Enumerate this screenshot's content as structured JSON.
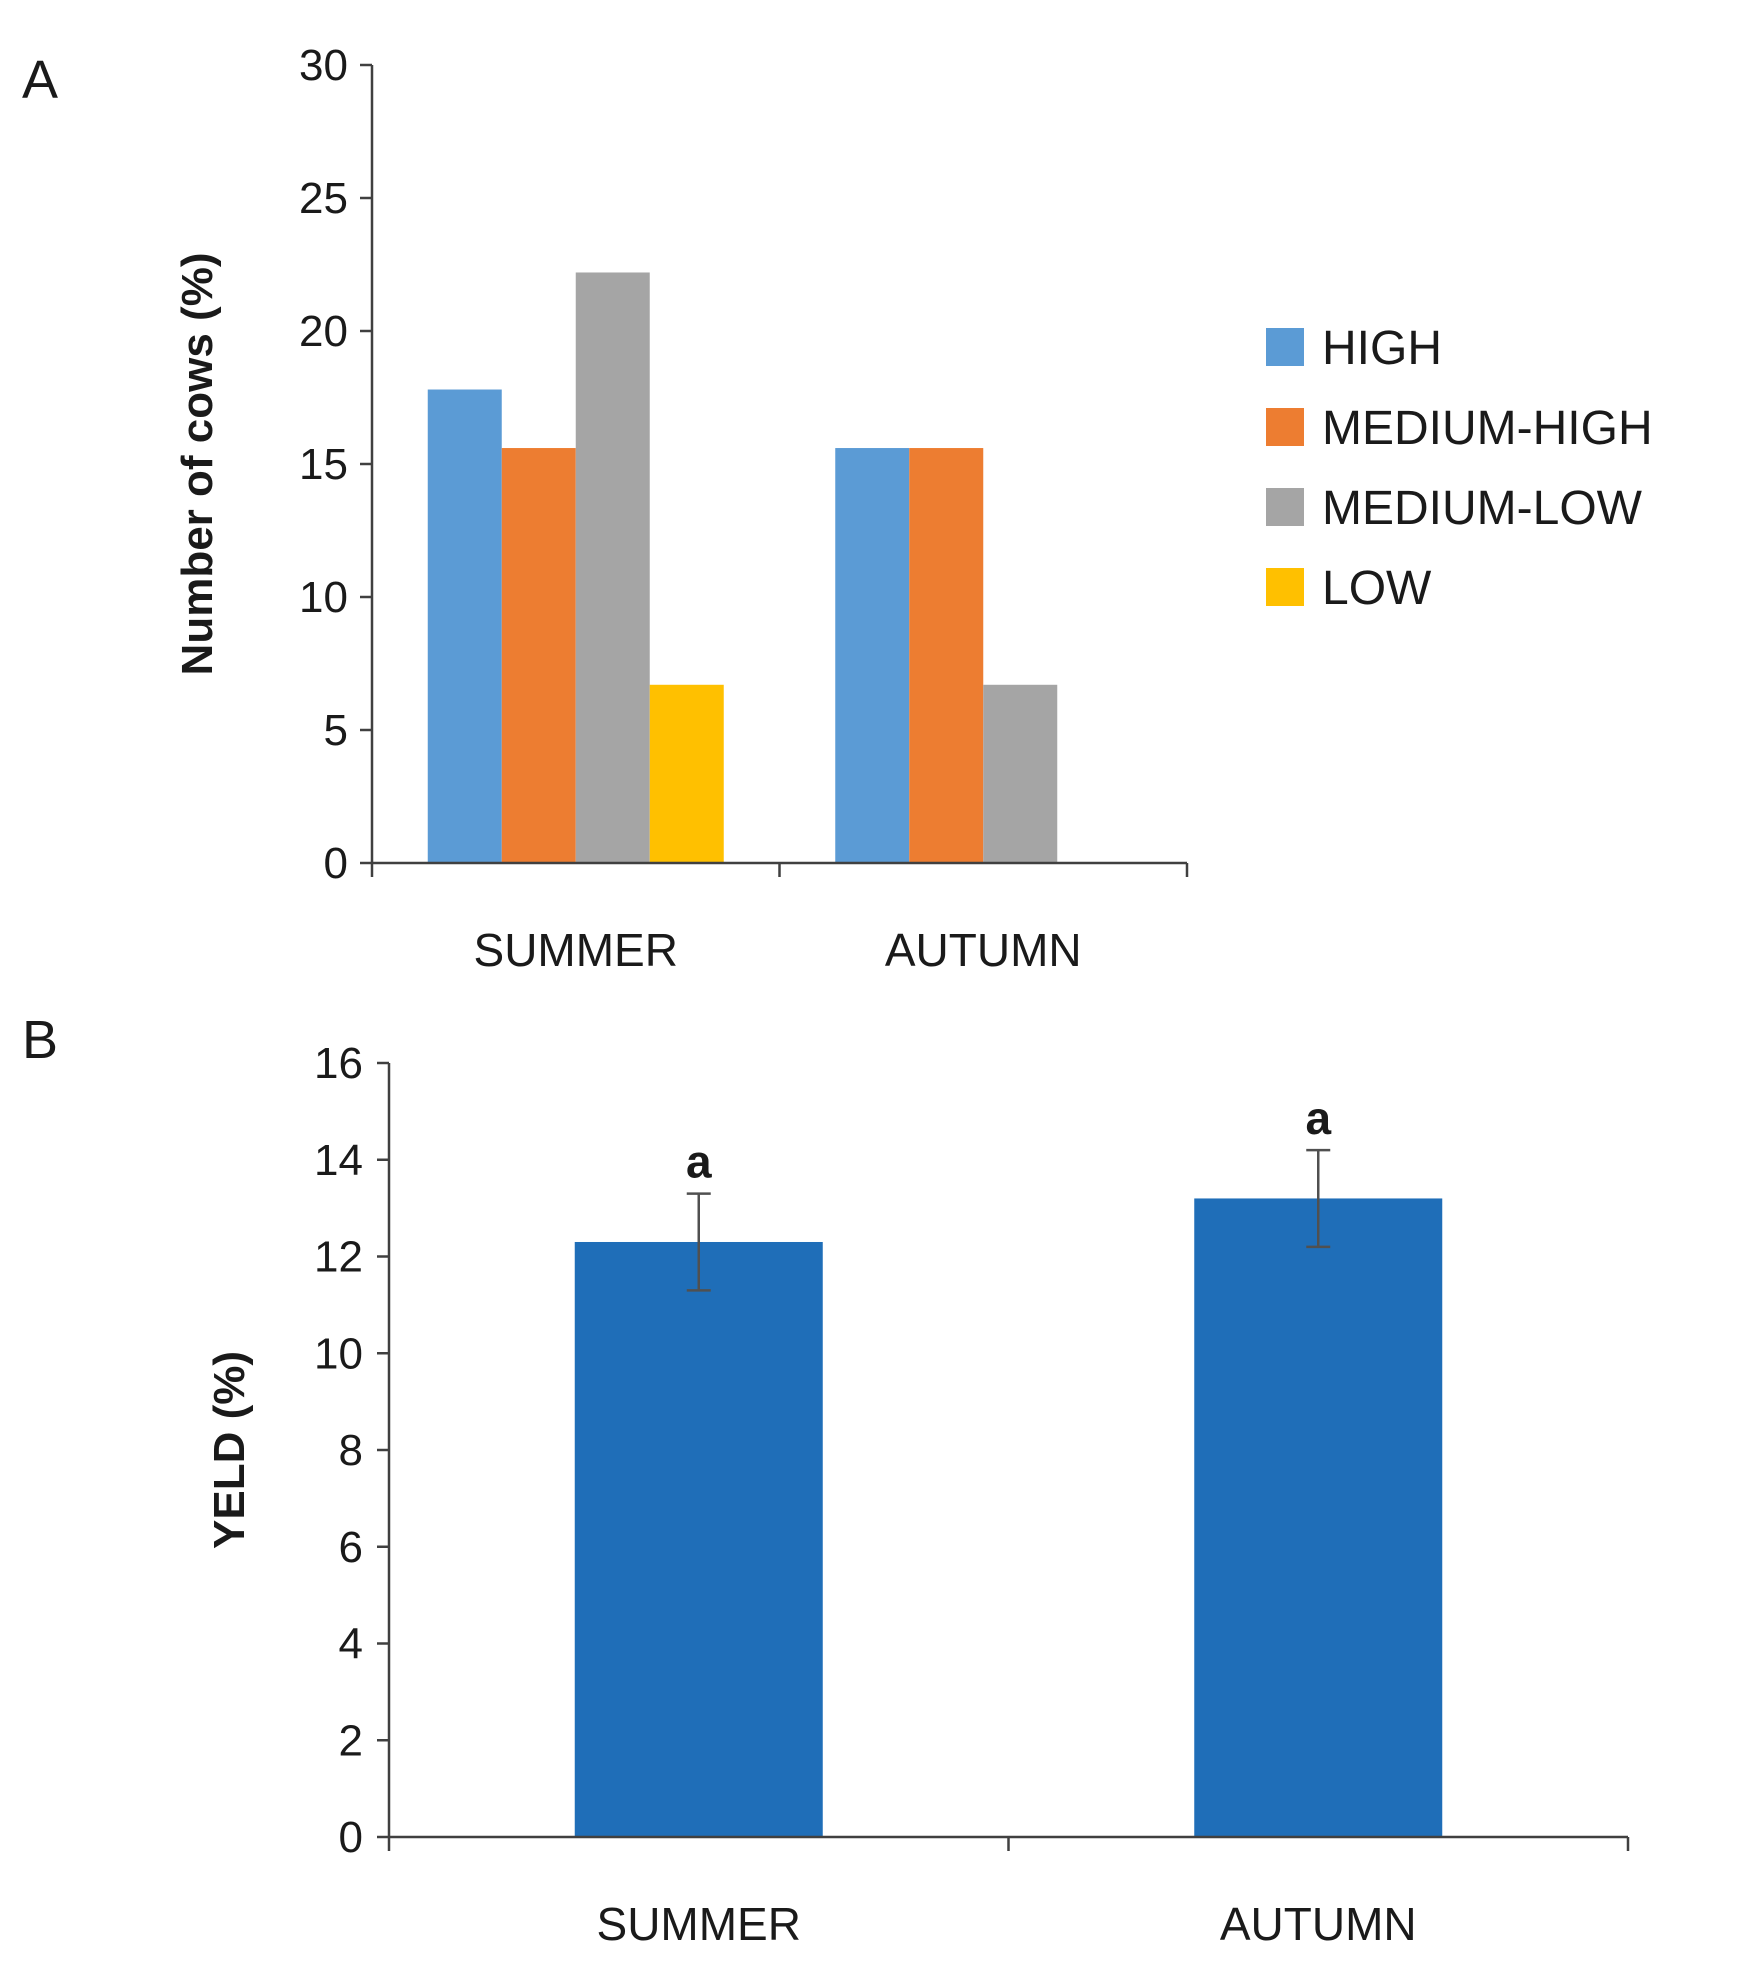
{
  "chart_data": [
    {
      "panel": "A",
      "type": "bar",
      "title": "",
      "xlabel": "",
      "ylabel": "Number of cows (%)",
      "ylim": [
        0,
        30
      ],
      "yticks": [
        0,
        5,
        10,
        15,
        20,
        25,
        30
      ],
      "categories": [
        "SUMMER",
        "AUTUMN"
      ],
      "grid": false,
      "legend_position": "right",
      "series": [
        {
          "name": "HIGH",
          "color": "#5b9bd5",
          "values": [
            17.8,
            15.6
          ]
        },
        {
          "name": "MEDIUM-HIGH",
          "color": "#ed7d31",
          "values": [
            15.6,
            15.6
          ]
        },
        {
          "name": "MEDIUM-LOW",
          "color": "#a5a5a5",
          "values": [
            22.2,
            6.7
          ]
        },
        {
          "name": "LOW",
          "color": "#ffc000",
          "values": [
            6.7,
            0
          ]
        }
      ]
    },
    {
      "panel": "B",
      "type": "bar",
      "title": "",
      "xlabel": "",
      "ylabel": "YELD (%)",
      "ylim": [
        0,
        16
      ],
      "yticks": [
        0,
        2,
        4,
        6,
        8,
        10,
        12,
        14,
        16
      ],
      "categories": [
        "SUMMER",
        "AUTUMN"
      ],
      "grid": false,
      "color": "#1f6eb8",
      "values": [
        12.3,
        13.2
      ],
      "errors": [
        1.0,
        1.0
      ],
      "annotations": [
        "a",
        "a"
      ]
    }
  ]
}
